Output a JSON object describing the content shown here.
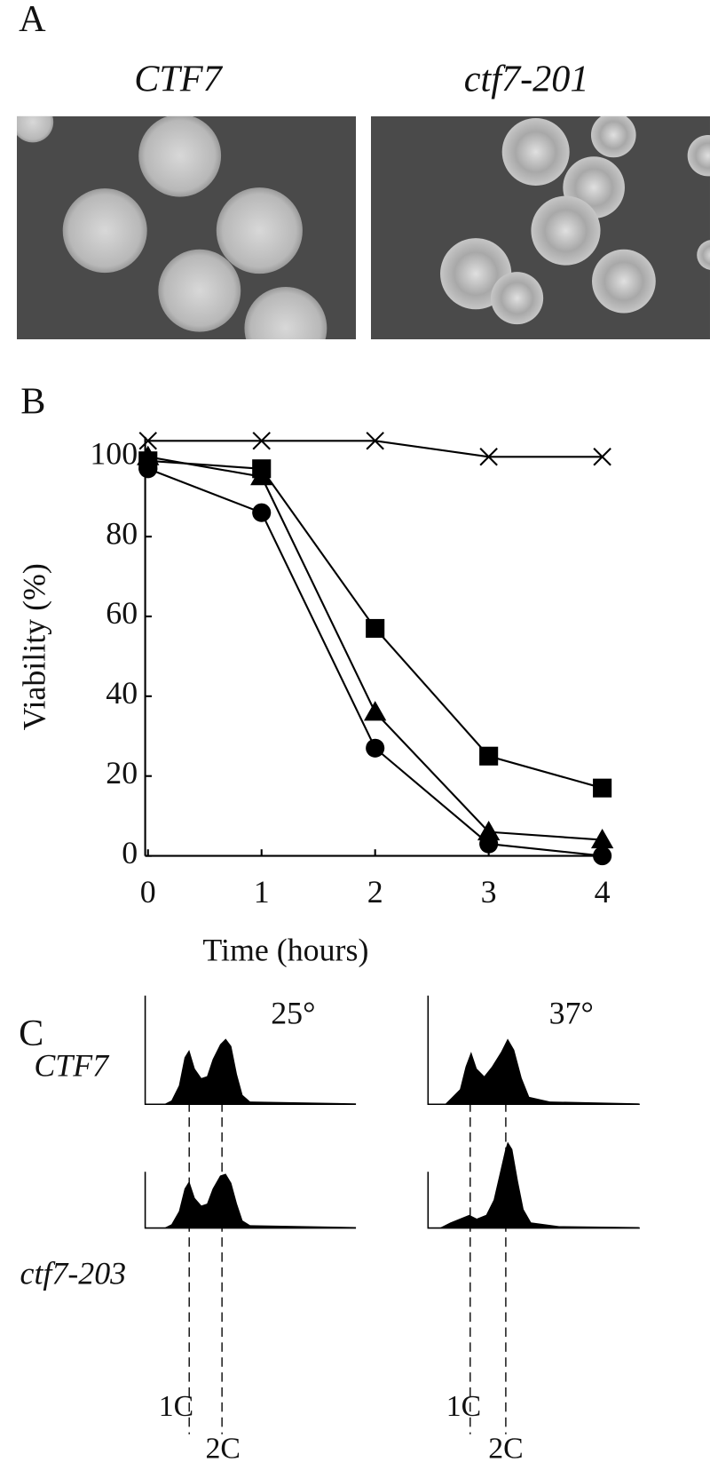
{
  "panel_a": {
    "label": "A",
    "left_caption": "CTF7",
    "right_caption": "ctf7-201"
  },
  "chart_data": {
    "type": "line",
    "label": "B",
    "x": [
      0,
      1,
      2,
      3,
      4
    ],
    "xlim": [
      0,
      4
    ],
    "xticks": [
      0,
      1,
      2,
      3,
      4
    ],
    "ylim": [
      0,
      105
    ],
    "yticks": [
      0,
      20,
      40,
      60,
      80,
      100
    ],
    "xlabel": "Time (hours)",
    "ylabel": "Viability (%)",
    "grid": false,
    "series": [
      {
        "color": "#000000",
        "marker": "x",
        "values": [
          104,
          104,
          104,
          100,
          100
        ]
      },
      {
        "color": "#000000",
        "marker": "square",
        "values": [
          99,
          97,
          57,
          25,
          17
        ]
      },
      {
        "color": "#000000",
        "marker": "triangle",
        "values": [
          100,
          95,
          36,
          6,
          4
        ]
      },
      {
        "color": "#000000",
        "marker": "circle",
        "values": [
          97,
          86,
          27,
          3,
          0
        ]
      }
    ]
  },
  "panel_c": {
    "label": "C",
    "temperatures": [
      "25°",
      "37°"
    ],
    "strains": [
      "CTF7",
      "ctf7-203"
    ],
    "peaks": [
      "1C",
      "2C"
    ]
  }
}
